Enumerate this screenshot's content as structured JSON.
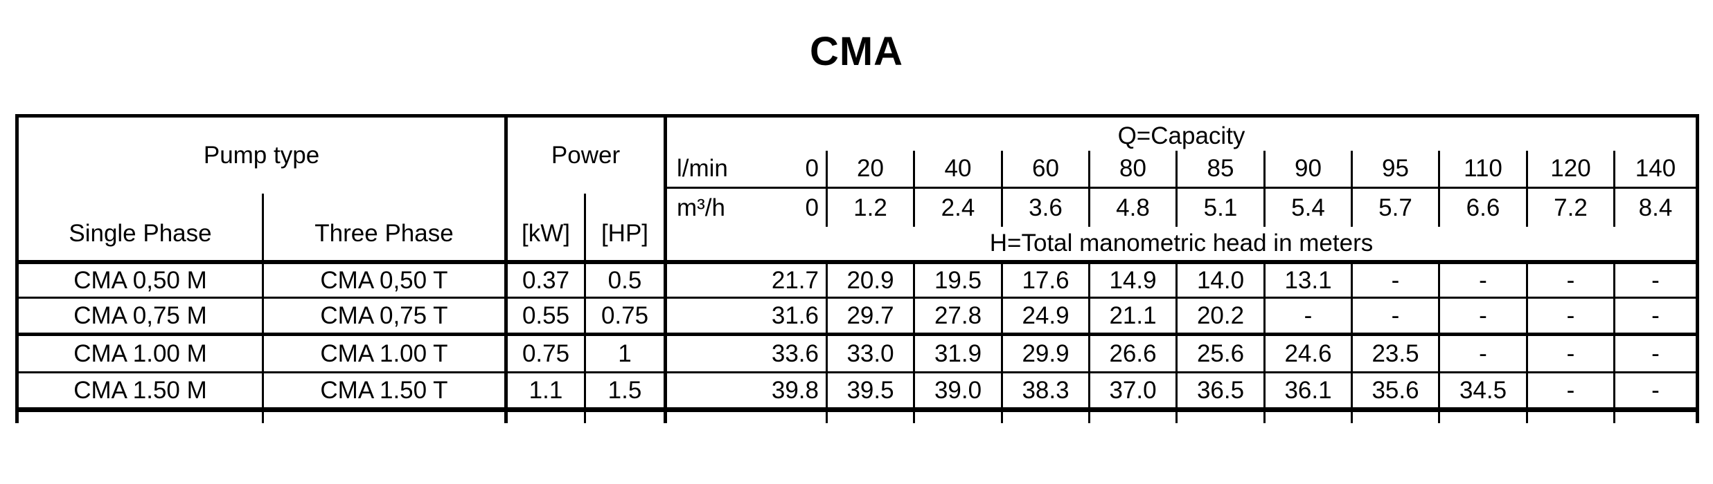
{
  "title": "CMA",
  "table": {
    "pump_type_header": "Pump type",
    "single_phase_header": "Single Phase",
    "three_phase_header": "Three Phase",
    "power_header": "Power",
    "kw_header": "[kW]",
    "hp_header": "[HP]",
    "capacity_header": "Q=Capacity",
    "lmin_label": "l/min",
    "m3h_label": "m³/h",
    "head_note": "H=Total manometric head in meters",
    "lmin_values": [
      "0",
      "20",
      "40",
      "60",
      "80",
      "85",
      "90",
      "95",
      "110",
      "120",
      "140"
    ],
    "m3h_values": [
      "0",
      "1.2",
      "2.4",
      "3.6",
      "4.8",
      "5.1",
      "5.4",
      "5.7",
      "6.6",
      "7.2",
      "8.4"
    ],
    "rows": [
      {
        "single_phase": "CMA 0,50 M",
        "three_phase": "CMA 0,50 T",
        "kw": "0.37",
        "hp": "0.5",
        "heads": [
          "21.7",
          "20.9",
          "19.5",
          "17.6",
          "14.9",
          "14.0",
          "13.1",
          "-",
          "-",
          "-",
          "-"
        ]
      },
      {
        "single_phase": "CMA 0,75 M",
        "three_phase": "CMA 0,75 T",
        "kw": "0.55",
        "hp": "0.75",
        "heads": [
          "31.6",
          "29.7",
          "27.8",
          "24.9",
          "21.1",
          "20.2",
          "-",
          "-",
          "-",
          "-",
          "-"
        ]
      },
      {
        "single_phase": "CMA 1.00 M",
        "three_phase": "CMA 1.00 T",
        "kw": "0.75",
        "hp": "1",
        "heads": [
          "33.6",
          "33.0",
          "31.9",
          "29.9",
          "26.6",
          "25.6",
          "24.6",
          "23.5",
          "-",
          "-",
          "-"
        ]
      },
      {
        "single_phase": "CMA 1.50 M",
        "three_phase": "CMA 1.50 T",
        "kw": "1.1",
        "hp": "1.5",
        "heads": [
          "39.8",
          "39.5",
          "39.0",
          "38.3",
          "37.0",
          "36.5",
          "36.1",
          "35.6",
          "34.5",
          "-",
          "-"
        ]
      }
    ]
  },
  "colors": {
    "text": "#000000",
    "border": "#000000",
    "background": "#ffffff"
  }
}
